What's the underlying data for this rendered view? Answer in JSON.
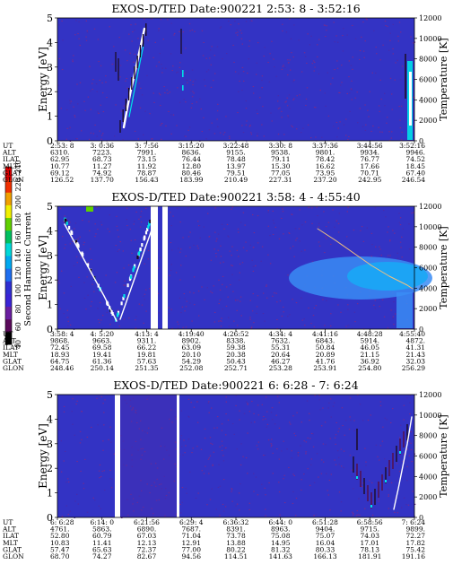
{
  "colorbar": {
    "label": "Second Harmonic Current",
    "ticks": [
      "40",
      "60",
      "80",
      "100",
      "120",
      "140",
      "160",
      "180",
      "200",
      "220",
      "240"
    ],
    "colors": [
      "#000000",
      "#5a0a5a",
      "#6a1ea0",
      "#3a24d6",
      "#2f2fd2",
      "#1e6ef0",
      "#00a8f0",
      "#00d8d8",
      "#00c060",
      "#60d000",
      "#f0f000",
      "#f0a000",
      "#f03000",
      "#e00000"
    ]
  },
  "colors": {
    "background": "#3333c4",
    "speckle": "#7a2a8a",
    "trace": "#ffffff",
    "cyan": "#00e0e8",
    "band_light": "#3a8cf5",
    "band_core": "#1aa8f5",
    "temp_curve": "#f0c080"
  },
  "chart_data": [
    {
      "type": "heatmap",
      "title": "EXOS-D/TED   Date:900221   2:53: 8 - 3:52:16",
      "ylabel": "Energy [eV]",
      "y2label": "Temperature [K]",
      "ylim": [
        0,
        5
      ],
      "y_ticks": [
        "0",
        "1",
        "2",
        "3",
        "4",
        "5"
      ],
      "y2lim": [
        0,
        12000
      ],
      "y2_ticks": [
        "0",
        "2000",
        "4000",
        "6000",
        "8000",
        "10000",
        "12000"
      ],
      "orbit_table": {
        "row_labels": [
          "UT",
          "ALT",
          "ILAT",
          "MLT",
          "GLAT",
          "GLON"
        ],
        "columns": [
          [
            "2:53: 8",
            "6310.",
            "62.95",
            "10.77",
            "69.12",
            "126.52"
          ],
          [
            "3: 0:36",
            "7223.",
            "68.73",
            "11.27",
            "74.92",
            "137.70"
          ],
          [
            "3: 7:56",
            "7991.",
            "73.15",
            "11.92",
            "78.87",
            "156.43"
          ],
          [
            "3:15:20",
            "8636.",
            "76.44",
            "12.80",
            "80.46",
            "183.99"
          ],
          [
            "3:22:48",
            "9155.",
            "78.48",
            "13.97",
            "79.51",
            "210.49"
          ],
          [
            "3:30: 8",
            "9538.",
            "79.11",
            "15.30",
            "77.05",
            "227.31"
          ],
          [
            "3:37:36",
            "9801.",
            "78.42",
            "16.62",
            "73.95",
            "237.20"
          ],
          [
            "3:44:56",
            "9934.",
            "76.77",
            "17.66",
            "70.71",
            "242.95"
          ],
          [
            "3:52:16",
            "9946.",
            "74.52",
            "18.45",
            "67.40",
            "246.54"
          ]
        ]
      }
    },
    {
      "type": "heatmap",
      "title": "EXOS-D/TED   Date:900221   3:58: 4 - 4:55:40",
      "ylabel": "Energy [eV]",
      "y2label": "Temperature [K]",
      "ylim": [
        0,
        5
      ],
      "y_ticks": [
        "0",
        "1",
        "2",
        "3",
        "4",
        "5"
      ],
      "y2lim": [
        0,
        12000
      ],
      "y2_ticks": [
        "0",
        "2000",
        "4000",
        "6000",
        "8000",
        "10000",
        "12000"
      ],
      "orbit_table": {
        "row_labels": [
          "UT",
          "ALT",
          "ILAT",
          "MLT",
          "GLAT",
          "GLON"
        ],
        "columns": [
          [
            "3:58: 4",
            "9868.",
            "72.45",
            "18.93",
            "64.75",
            "248.46"
          ],
          [
            "4: 5:20",
            "9663.",
            "69.58",
            "19.41",
            "61.36",
            "250.14"
          ],
          [
            "4:13: 4",
            "9311.",
            "66.22",
            "19.81",
            "57.63",
            "251.35"
          ],
          [
            "4:19:40",
            "8902.",
            "63.09",
            "20.10",
            "54.29",
            "252.08"
          ],
          [
            "4:26:52",
            "8338.",
            "59.38",
            "20.38",
            "50.43",
            "252.71"
          ],
          [
            "4:34: 4",
            "7632.",
            "55.31",
            "20.64",
            "46.27",
            "253.28"
          ],
          [
            "4:41:16",
            "6843.",
            "50.84",
            "20.89",
            "41.76",
            "253.91"
          ],
          [
            "4:48:28",
            "5914.",
            "46.05",
            "21.15",
            "36.92",
            "254.80"
          ],
          [
            "4:55:40",
            "4872.",
            "41.31",
            "21.43",
            "32.03",
            "256.29"
          ]
        ]
      }
    },
    {
      "type": "heatmap",
      "title": "EXOS-D/TED   Date:900221   6: 6:28 - 7: 6:24",
      "ylabel": "Energy [eV]",
      "y2label": "Temperature [K]",
      "ylim": [
        0,
        5
      ],
      "y_ticks": [
        "0",
        "1",
        "2",
        "3",
        "4",
        "5"
      ],
      "y2lim": [
        0,
        12000
      ],
      "y2_ticks": [
        "0",
        "2000",
        "4000",
        "6000",
        "8000",
        "10000",
        "12000"
      ],
      "orbit_table": {
        "row_labels": [
          "UT",
          "ALT",
          "ILAT",
          "MLT",
          "GLAT",
          "GLON"
        ],
        "columns": [
          [
            "6: 6:28",
            "4761.",
            "52.80",
            "10.83",
            "57.47",
            "68.70"
          ],
          [
            "6:14: 0",
            "5863.",
            "60.79",
            "11.41",
            "65.63",
            "74.27"
          ],
          [
            "6:21:56",
            "6890.",
            "67.03",
            "12.13",
            "72.37",
            "82.67"
          ],
          [
            "6:29: 4",
            "7687.",
            "71.04",
            "12.91",
            "77.00",
            "94.56"
          ],
          [
            "6:36:32",
            "8391.",
            "73.78",
            "13.88",
            "80.22",
            "114.51"
          ],
          [
            "6:44: 0",
            "8963.",
            "75.08",
            "14.95",
            "81.32",
            "141.63"
          ],
          [
            "6:51:28",
            "9404.",
            "75.07",
            "16.04",
            "80.33",
            "166.13"
          ],
          [
            "6:58:56",
            "9715.",
            "74.03",
            "17.01",
            "78.13",
            "181.91"
          ],
          [
            "7: 6:24",
            "9899.",
            "72.27",
            "17.82",
            "75.42",
            "191.16"
          ]
        ]
      }
    }
  ]
}
